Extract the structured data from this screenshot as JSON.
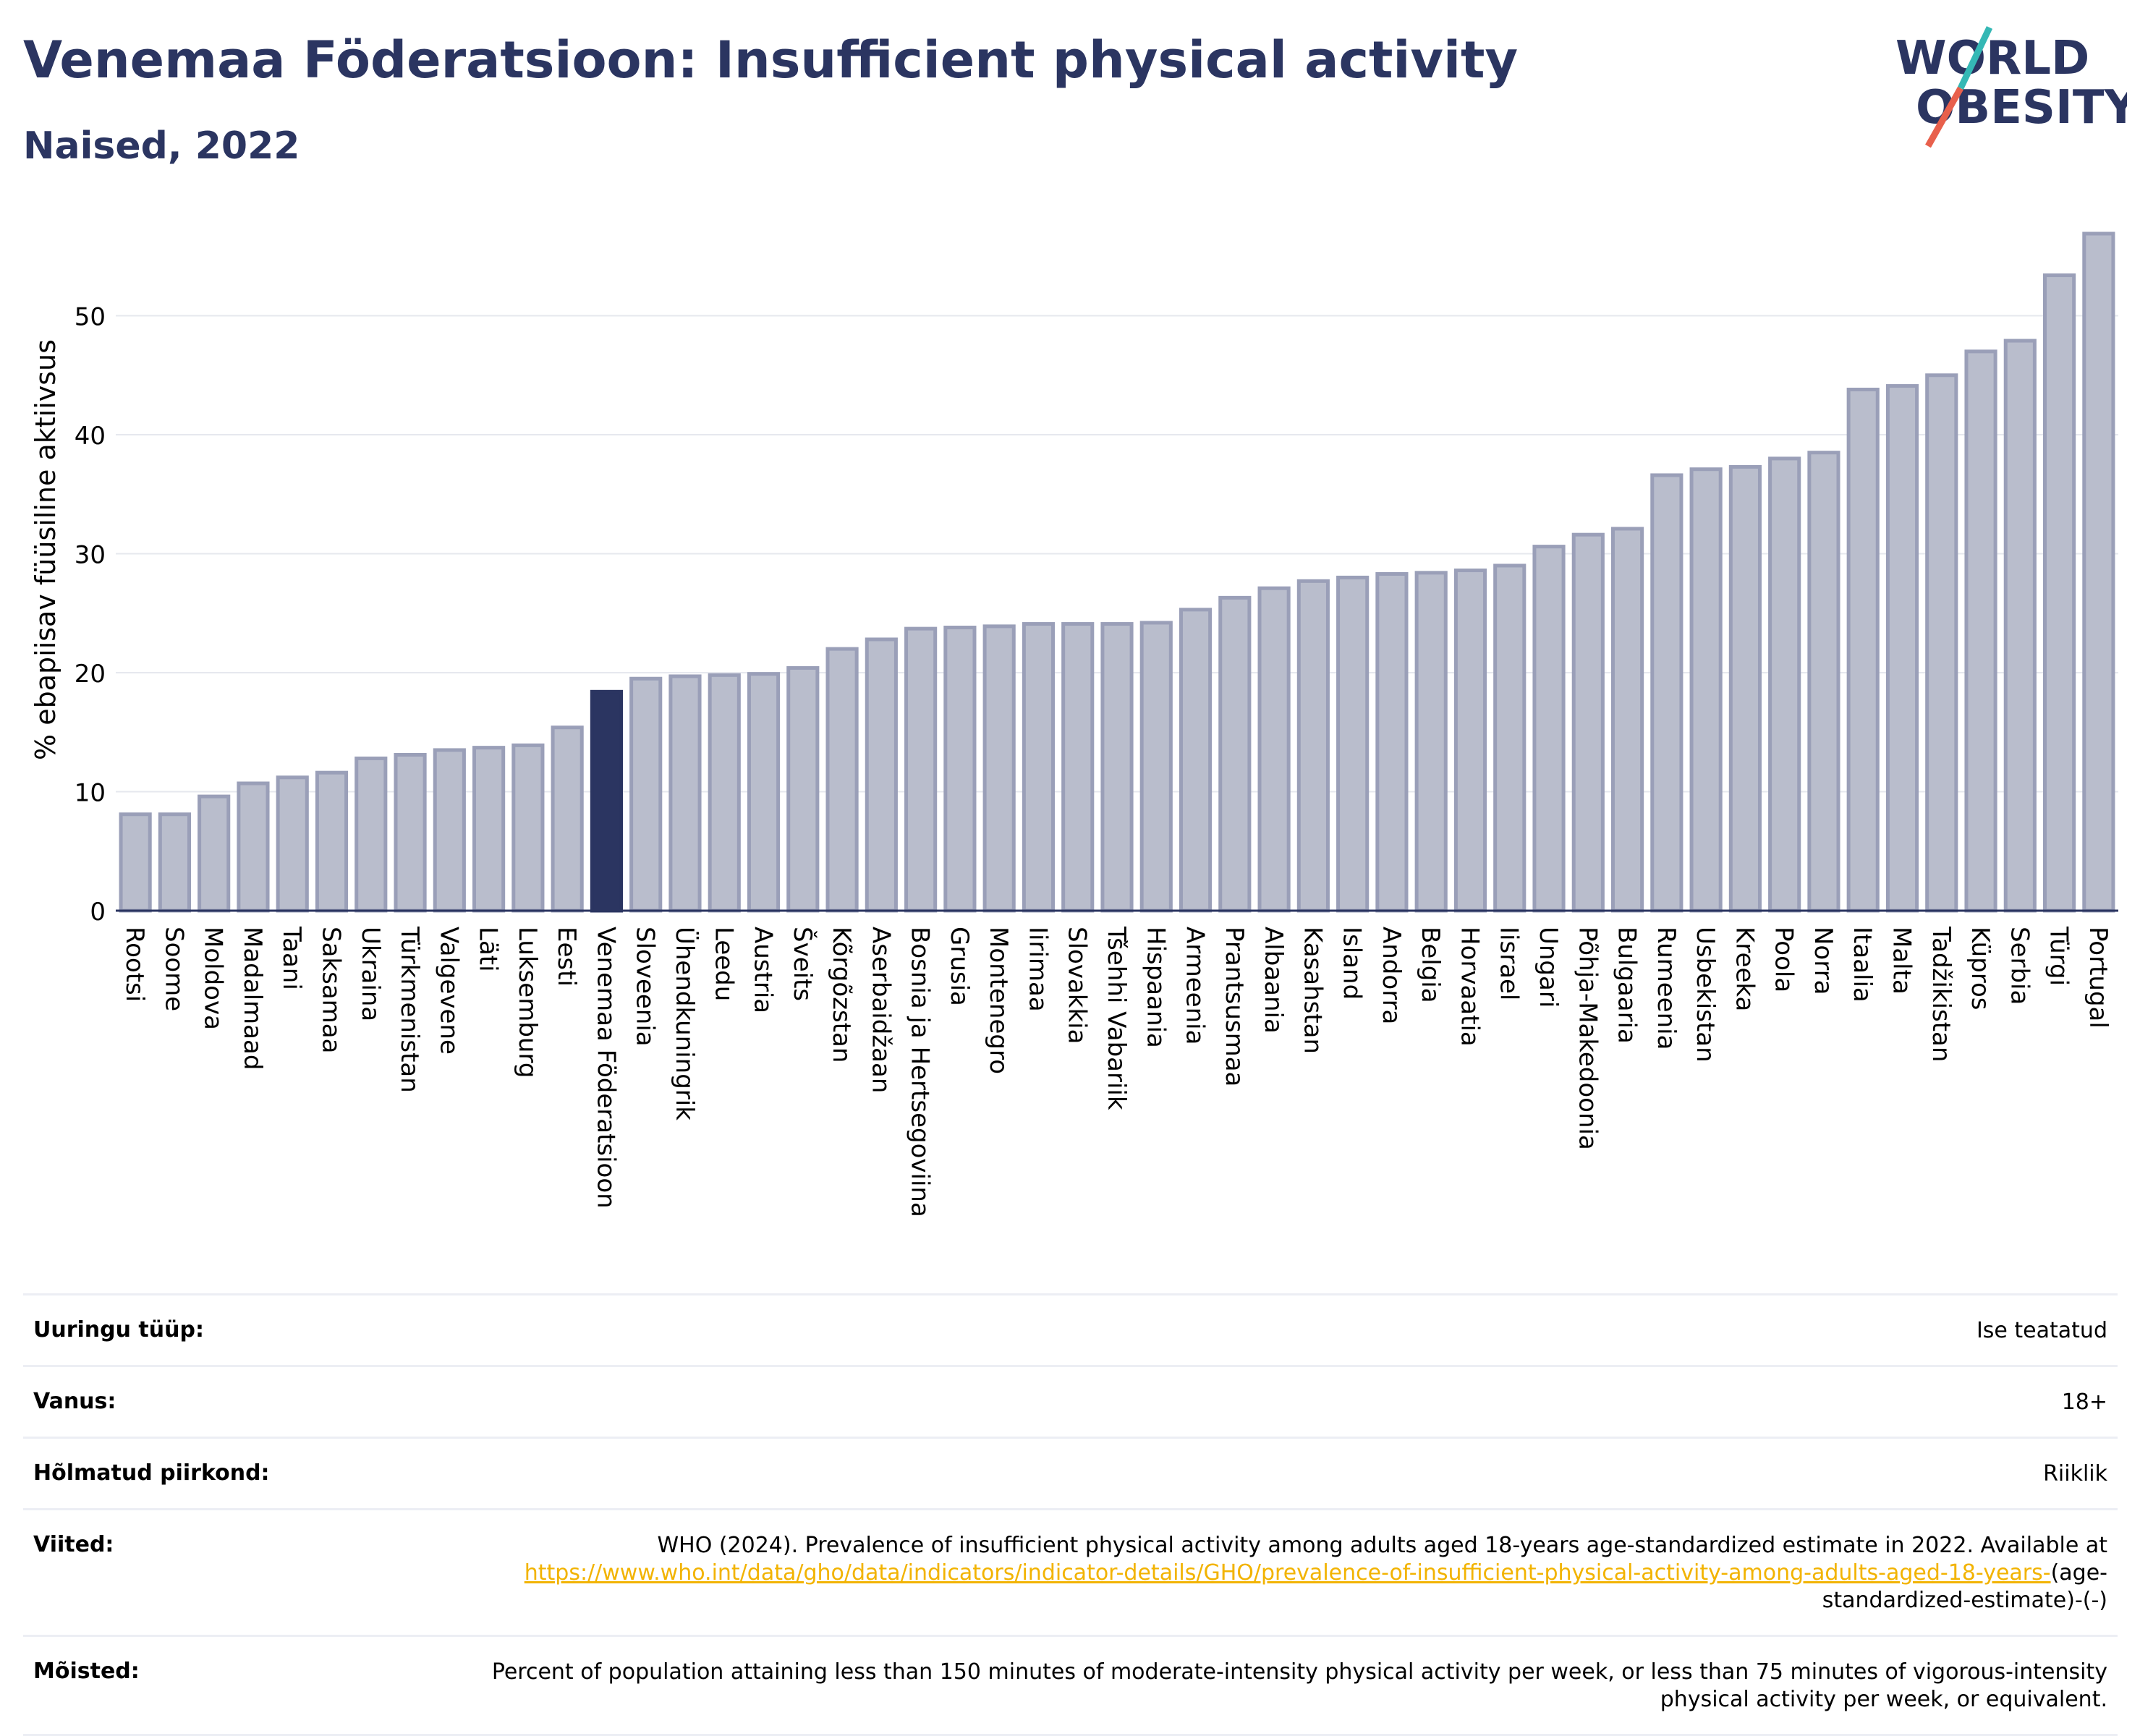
{
  "header": {
    "title": "Venemaa Föderatsioon: Insufficient physical activity",
    "subtitle": "Naised, 2022",
    "logo_line1": "WORLD",
    "logo_line2": "OBESITY"
  },
  "colors": {
    "bar": "#b9bdcc",
    "bar_stroke": "#9a9fb8",
    "highlight": "#2b3561",
    "title": "#2b3561",
    "link": "#f2b300",
    "logo_teal": "#35b8b5",
    "logo_red": "#e8604c"
  },
  "chart_data": {
    "type": "bar",
    "ylabel": "% ebapiisav füüsiline aktiivsus",
    "ylim": [
      0,
      58
    ],
    "yticks": [
      0,
      10,
      20,
      30,
      40,
      50
    ],
    "grid": true,
    "highlight": "Venemaa Föderatsioon",
    "categories": [
      "Rootsi",
      "Soome",
      "Moldova",
      "Madalmaad",
      "Taani",
      "Saksamaa",
      "Ukraina",
      "Türkmenistan",
      "Valgevene",
      "Läti",
      "Luksemburg",
      "Eesti",
      "Venemaa Föderatsioon",
      "Sloveenia",
      "Ühendkuningrik",
      "Leedu",
      "Austria",
      "Šveits",
      "Kõrgõzstan",
      "Aserbaidžaan",
      "Bosnia ja Hertsegoviina",
      "Grusia",
      "Montenegro",
      "Iirimaa",
      "Slovakkia",
      "Tšehhi Vabariik",
      "Hispaania",
      "Armeenia",
      "Prantsusmaa",
      "Albaania",
      "Kasahstan",
      "Island",
      "Andorra",
      "Belgia",
      "Horvaatia",
      "Iisrael",
      "Ungari",
      "Põhja-Makedoonia",
      "Bulgaaria",
      "Rumeenia",
      "Usbekistan",
      "Kreeka",
      "Poola",
      "Norra",
      "Itaalia",
      "Malta",
      "Tadžikistan",
      "Küpros",
      "Serbia",
      "Türgi",
      "Portugal"
    ],
    "values": [
      8.1,
      8.1,
      9.6,
      10.7,
      11.2,
      11.6,
      12.8,
      13.1,
      13.5,
      13.7,
      13.9,
      15.4,
      18.4,
      19.5,
      19.7,
      19.8,
      19.9,
      20.4,
      22.0,
      22.8,
      23.7,
      23.8,
      23.9,
      24.1,
      24.1,
      24.1,
      24.2,
      25.3,
      26.3,
      27.1,
      27.7,
      28.0,
      28.3,
      28.4,
      28.6,
      29.0,
      30.6,
      31.6,
      32.1,
      36.6,
      37.1,
      37.3,
      38.0,
      38.5,
      43.8,
      44.1,
      45.0,
      47.0,
      47.9,
      53.4,
      56.9
    ]
  },
  "meta": [
    {
      "key": "Uuringu tüüp:",
      "value": "Ise teatatud"
    },
    {
      "key": "Vanus:",
      "value": "18+"
    },
    {
      "key": "Hõlmatud piirkond:",
      "value": "Riiklik"
    },
    {
      "key": "Viited:",
      "value_pre": "WHO (2024). Prevalence of insufficient physical activity among adults aged 18-years age-standardized estimate in 2022. Available at",
      "value_link": "https://www.who.int/data/gho/data/indicators/indicator-details/GHO/prevalence-of-insufficient-physical-activity-among-adults-aged-18-years-",
      "value_post": "(age-standardized-estimate)-(-)"
    },
    {
      "key": "Mõisted:",
      "value": "Percent of population attaining less than 150 minutes of moderate-intensity physical activity per week, or less than 75 minutes of vigorous-intensity physical activity per week, or equivalent."
    }
  ]
}
